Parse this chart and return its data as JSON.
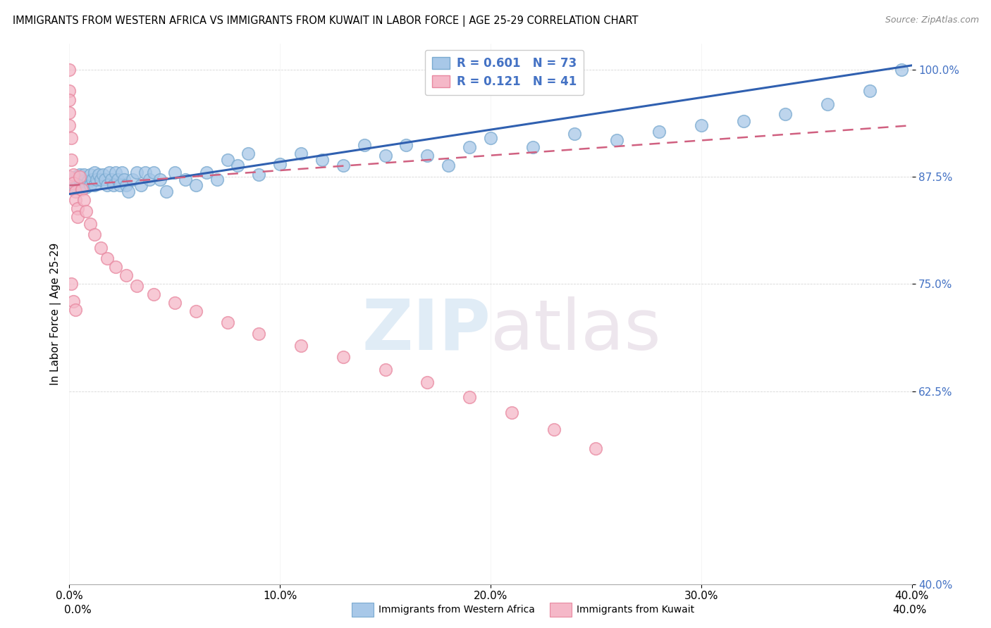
{
  "title": "IMMIGRANTS FROM WESTERN AFRICA VS IMMIGRANTS FROM KUWAIT IN LABOR FORCE | AGE 25-29 CORRELATION CHART",
  "source": "Source: ZipAtlas.com",
  "ylabel": "In Labor Force | Age 25-29",
  "xlim": [
    0.0,
    0.4
  ],
  "ylim": [
    0.4,
    1.03
  ],
  "xtick_labels": [
    "0.0%",
    "10.0%",
    "20.0%",
    "30.0%",
    "40.0%"
  ],
  "xtick_values": [
    0.0,
    0.1,
    0.2,
    0.3,
    0.4
  ],
  "ytick_labels": [
    "100.0%",
    "87.5%",
    "75.0%",
    "62.5%",
    "40.0%"
  ],
  "ytick_values": [
    1.0,
    0.875,
    0.75,
    0.625,
    0.4
  ],
  "blue_color": "#a8c8e8",
  "blue_edge_color": "#7aaad0",
  "pink_color": "#f5b8c8",
  "pink_edge_color": "#e888a0",
  "blue_line_color": "#3060b0",
  "pink_line_color": "#d06080",
  "legend_R_blue": "R = 0.601",
  "legend_N_blue": "N = 73",
  "legend_R_pink": "R = 0.121",
  "legend_N_pink": "N = 41",
  "legend_label_blue": "Immigrants from Western Africa",
  "legend_label_pink": "Immigrants from Kuwait",
  "blue_line_x0": 0.0,
  "blue_line_y0": 0.855,
  "blue_line_x1": 0.4,
  "blue_line_y1": 1.005,
  "pink_line_x0": 0.0,
  "pink_line_y0": 0.865,
  "pink_line_x1": 0.4,
  "pink_line_y1": 0.935,
  "blue_scatter_x": [
    0.0,
    0.0,
    0.001,
    0.002,
    0.003,
    0.003,
    0.004,
    0.005,
    0.005,
    0.006,
    0.007,
    0.007,
    0.008,
    0.009,
    0.01,
    0.01,
    0.011,
    0.012,
    0.012,
    0.013,
    0.014,
    0.015,
    0.016,
    0.017,
    0.018,
    0.019,
    0.02,
    0.021,
    0.022,
    0.023,
    0.024,
    0.025,
    0.026,
    0.027,
    0.028,
    0.03,
    0.032,
    0.034,
    0.036,
    0.038,
    0.04,
    0.043,
    0.046,
    0.05,
    0.055,
    0.06,
    0.065,
    0.07,
    0.075,
    0.08,
    0.085,
    0.09,
    0.1,
    0.11,
    0.12,
    0.13,
    0.14,
    0.15,
    0.16,
    0.17,
    0.18,
    0.19,
    0.2,
    0.22,
    0.24,
    0.26,
    0.28,
    0.3,
    0.32,
    0.34,
    0.36,
    0.38,
    0.395
  ],
  "blue_scatter_y": [
    0.875,
    0.875,
    0.87,
    0.865,
    0.87,
    0.875,
    0.868,
    0.872,
    0.878,
    0.865,
    0.87,
    0.878,
    0.863,
    0.87,
    0.865,
    0.878,
    0.872,
    0.865,
    0.88,
    0.872,
    0.878,
    0.872,
    0.878,
    0.872,
    0.865,
    0.88,
    0.872,
    0.865,
    0.88,
    0.872,
    0.865,
    0.88,
    0.872,
    0.865,
    0.858,
    0.872,
    0.88,
    0.865,
    0.88,
    0.872,
    0.88,
    0.872,
    0.858,
    0.88,
    0.872,
    0.865,
    0.88,
    0.872,
    0.895,
    0.888,
    0.902,
    0.878,
    0.89,
    0.902,
    0.895,
    0.888,
    0.912,
    0.9,
    0.912,
    0.9,
    0.888,
    0.91,
    0.92,
    0.91,
    0.925,
    0.918,
    0.928,
    0.935,
    0.94,
    0.948,
    0.96,
    0.975,
    1.0
  ],
  "pink_scatter_x": [
    0.0,
    0.0,
    0.0,
    0.0,
    0.0,
    0.0,
    0.001,
    0.001,
    0.002,
    0.002,
    0.003,
    0.003,
    0.004,
    0.004,
    0.005,
    0.006,
    0.007,
    0.008,
    0.01,
    0.012,
    0.015,
    0.018,
    0.022,
    0.027,
    0.032,
    0.04,
    0.05,
    0.06,
    0.075,
    0.09,
    0.11,
    0.13,
    0.15,
    0.17,
    0.19,
    0.21,
    0.23,
    0.25,
    0.001,
    0.002,
    0.003
  ],
  "pink_scatter_y": [
    1.0,
    0.975,
    0.965,
    0.95,
    0.935,
    0.875,
    0.92,
    0.895,
    0.878,
    0.868,
    0.858,
    0.848,
    0.838,
    0.828,
    0.875,
    0.86,
    0.848,
    0.835,
    0.82,
    0.808,
    0.792,
    0.78,
    0.77,
    0.76,
    0.748,
    0.738,
    0.728,
    0.718,
    0.705,
    0.692,
    0.678,
    0.665,
    0.65,
    0.635,
    0.618,
    0.6,
    0.58,
    0.558,
    0.75,
    0.73,
    0.72
  ]
}
